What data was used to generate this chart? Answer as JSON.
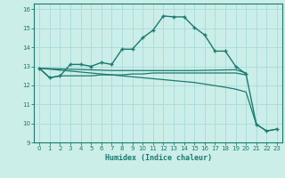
{
  "title": "",
  "xlabel": "Humidex (Indice chaleur)",
  "ylabel": "",
  "bg_color": "#cceee8",
  "line_color": "#1a7a6e",
  "grid_color": "#aadddd",
  "xlim": [
    -0.5,
    23.5
  ],
  "ylim": [
    9,
    16.3
  ],
  "yticks": [
    9,
    10,
    11,
    12,
    13,
    14,
    15,
    16
  ],
  "xticks": [
    0,
    1,
    2,
    3,
    4,
    5,
    6,
    7,
    8,
    9,
    10,
    11,
    12,
    13,
    14,
    15,
    16,
    17,
    18,
    19,
    20,
    21,
    22,
    23
  ],
  "series_main": {
    "x": [
      0,
      1,
      2,
      3,
      4,
      5,
      6,
      7,
      8,
      9,
      10,
      11,
      12,
      13,
      14,
      15,
      16,
      17,
      18,
      19,
      20,
      21,
      22,
      23
    ],
    "y": [
      12.9,
      12.4,
      12.5,
      13.1,
      13.1,
      13.0,
      13.2,
      13.1,
      13.9,
      13.9,
      14.5,
      14.9,
      15.65,
      15.6,
      15.6,
      15.05,
      14.65,
      13.8,
      13.8,
      13.0,
      12.6,
      9.95,
      9.6,
      9.7
    ]
  },
  "series_flat1": {
    "x": [
      0,
      1,
      2,
      3,
      4,
      5,
      6,
      7,
      8,
      9,
      10,
      11,
      12,
      13,
      14,
      15,
      16,
      17,
      18,
      19,
      20
    ],
    "y": [
      12.9,
      12.4,
      12.5,
      12.5,
      12.5,
      12.5,
      12.55,
      12.55,
      12.55,
      12.6,
      12.6,
      12.65,
      12.65,
      12.65,
      12.65,
      12.65,
      12.65,
      12.65,
      12.65,
      12.65,
      12.55
    ]
  },
  "series_flat2": {
    "x": [
      0,
      3,
      7,
      10,
      13,
      15,
      19,
      20
    ],
    "y": [
      12.9,
      12.85,
      12.78,
      12.78,
      12.78,
      12.78,
      12.82,
      12.65
    ]
  },
  "series_diagonal": {
    "x": [
      0,
      3,
      6,
      9,
      12,
      15,
      18,
      19,
      20,
      21,
      22,
      23
    ],
    "y": [
      12.9,
      12.75,
      12.6,
      12.45,
      12.3,
      12.15,
      11.9,
      11.8,
      11.65,
      9.95,
      9.6,
      9.7
    ]
  }
}
